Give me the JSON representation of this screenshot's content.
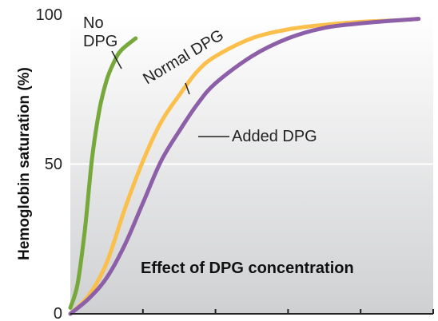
{
  "chart_data": {
    "type": "line",
    "title": "Effect of DPG concentration",
    "xlabel": "",
    "ylabel": "Hemoglobin saturation (%)",
    "ylim": [
      0,
      100
    ],
    "y_ticks": [
      "0",
      "50",
      "100"
    ],
    "x_range": [
      0,
      5
    ],
    "grid": "horizontal line at 50",
    "series": [
      {
        "name": "No DPG",
        "annotation_lines": [
          "No",
          "DPG"
        ],
        "color": "#76a83c",
        "x": [
          0.0,
          0.1,
          0.2,
          0.3,
          0.4,
          0.5,
          0.6,
          0.7,
          0.9
        ],
        "y": [
          2,
          10,
          28,
          52,
          68,
          78,
          84,
          88,
          92
        ]
      },
      {
        "name": "Normal DPG",
        "color": "#fbbf4c",
        "x": [
          0.0,
          0.25,
          0.5,
          0.75,
          1.0,
          1.25,
          1.5,
          1.75,
          2.0,
          2.5,
          3.0,
          3.5,
          4.0,
          4.5,
          4.8
        ],
        "y": [
          0,
          6,
          17,
          35,
          51,
          64,
          73,
          81,
          86,
          92,
          95,
          96.5,
          97.5,
          98,
          98.5
        ]
      },
      {
        "name": "Added DPG",
        "color": "#8c5fa8",
        "x": [
          0.0,
          0.25,
          0.5,
          0.75,
          1.0,
          1.25,
          1.5,
          1.75,
          2.0,
          2.5,
          3.0,
          3.5,
          4.0,
          4.5,
          4.8
        ],
        "y": [
          0,
          5,
          12,
          23,
          37,
          51,
          61,
          70,
          77,
          86,
          92,
          95.5,
          97,
          98,
          98.5
        ]
      }
    ]
  }
}
